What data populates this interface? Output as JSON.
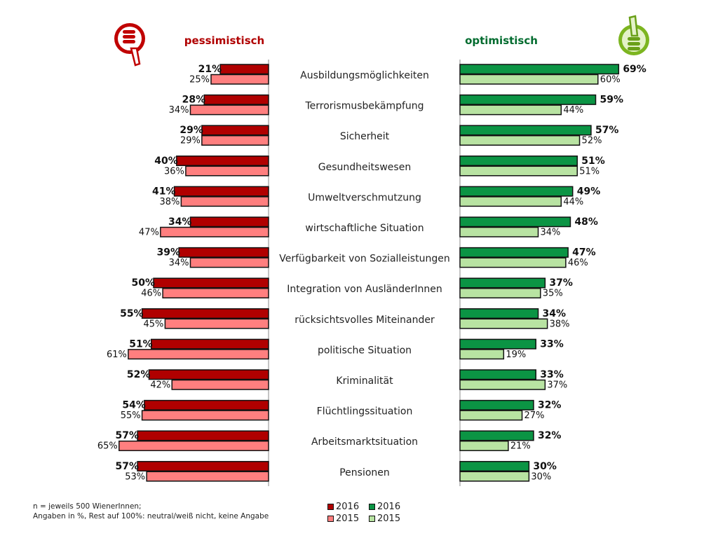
{
  "chart_data": {
    "type": "bar",
    "orientation": "horizontal-butterfly",
    "left_title": "pessimistisch",
    "right_title": "optimistisch",
    "categories": [
      "Ausbildungsmöglichkeiten",
      "Terrorismusbekämpfung",
      "Sicherheit",
      "Gesundheitswesen",
      "Umweltverschmutzung",
      "wirtschaftliche Situation",
      "Verfügbarkeit von Sozialleistungen",
      "Integration von AusländerInnen",
      "rücksichtsvolles Miteinander",
      "politische Situation",
      "Kriminalität",
      "Flüchtlingssituation",
      "Arbeitsmarktsituation",
      "Pensionen"
    ],
    "series": [
      {
        "name": "pessimistisch 2016",
        "legend": "2016",
        "side": "left",
        "color": "#B00000",
        "values": [
          21,
          28,
          29,
          40,
          41,
          34,
          39,
          50,
          55,
          51,
          52,
          54,
          57,
          57
        ]
      },
      {
        "name": "pessimistisch 2015",
        "legend": "2015",
        "side": "left",
        "color": "#FF7F7F",
        "values": [
          25,
          34,
          29,
          36,
          38,
          47,
          34,
          46,
          45,
          61,
          42,
          55,
          65,
          53
        ]
      },
      {
        "name": "optimistisch 2016",
        "legend": "2016",
        "side": "right",
        "color": "#0B9444",
        "values": [
          69,
          59,
          57,
          51,
          49,
          48,
          47,
          37,
          34,
          33,
          33,
          32,
          32,
          30
        ]
      },
      {
        "name": "optimistisch 2015",
        "legend": "2015",
        "side": "right",
        "color": "#B8E3A2",
        "values": [
          60,
          44,
          52,
          51,
          44,
          34,
          46,
          35,
          38,
          19,
          37,
          27,
          21,
          30
        ]
      }
    ],
    "unit": "%",
    "xlim": [
      0,
      70
    ]
  },
  "footnote": {
    "line1": "n = jeweils 500 WienerInnen;",
    "line2": "Angaben in %, Rest auf 100%: neutral/weiß nicht, keine Angabe"
  },
  "colors": {
    "pess_title": "#B00000",
    "opt_title": "#006B2E"
  }
}
